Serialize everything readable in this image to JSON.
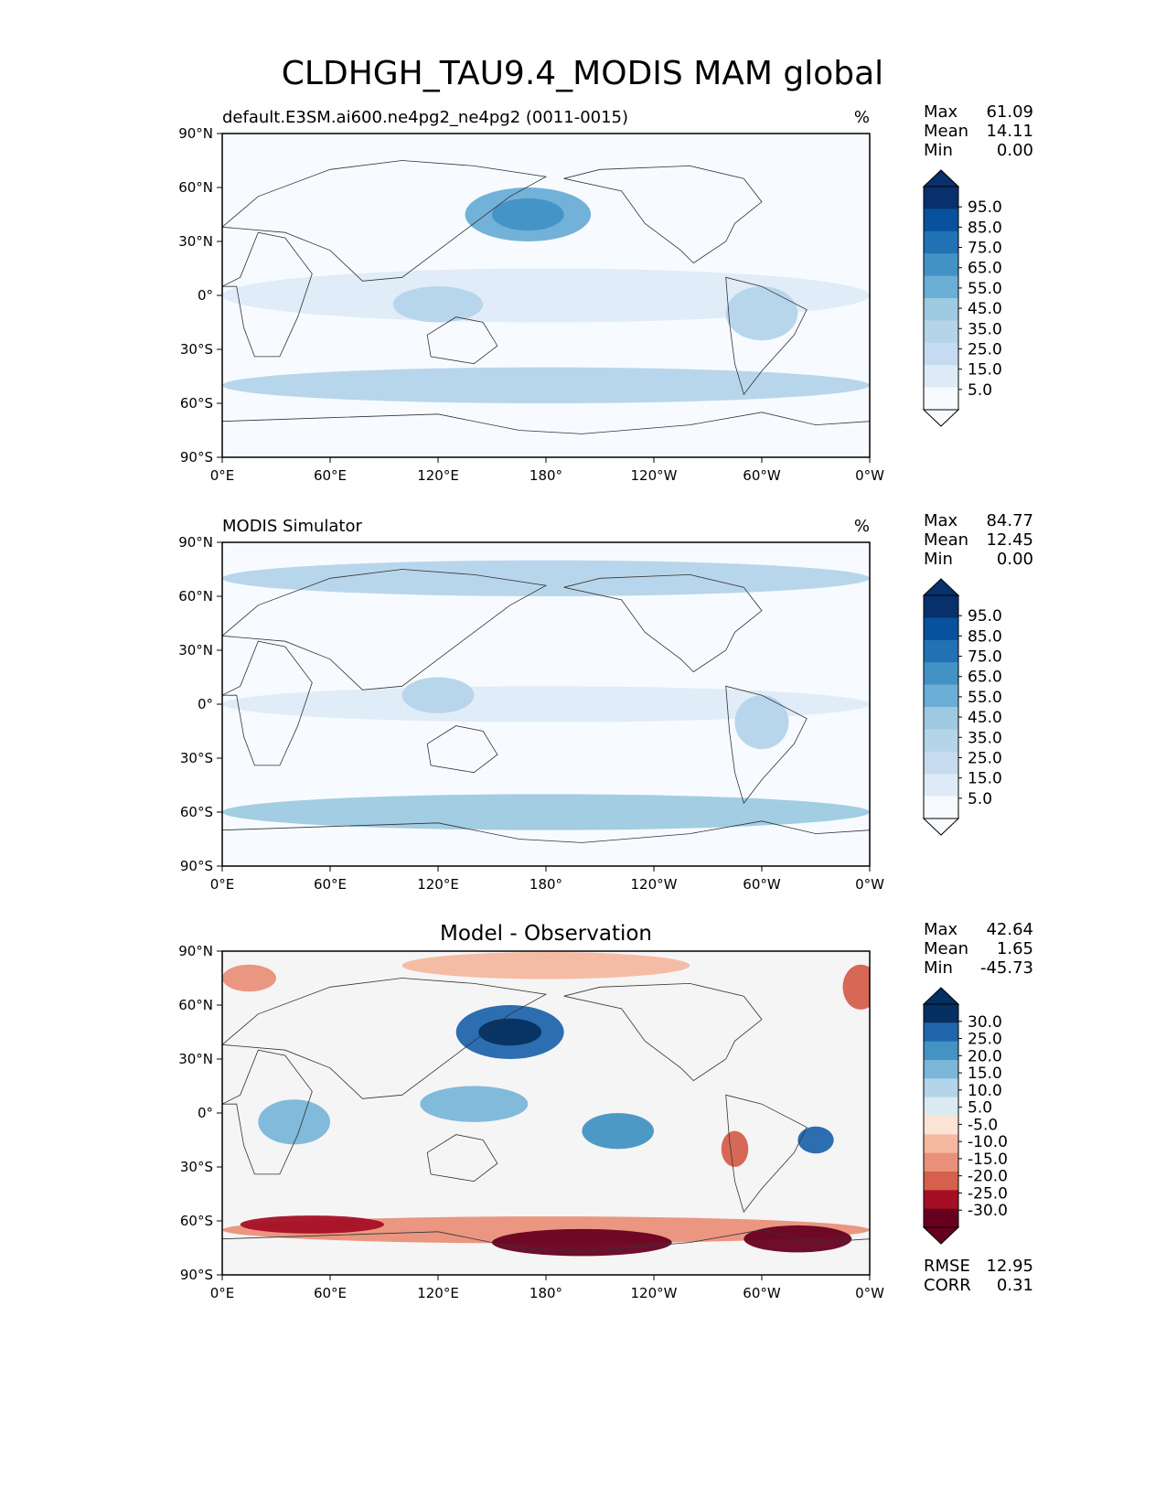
{
  "title": "CLDHGH_TAU9.4_MODIS MAM global",
  "x_ticks": [
    "0°E",
    "60°E",
    "120°E",
    "180°",
    "120°W",
    "60°W",
    "0°W"
  ],
  "y_ticks": [
    "90°N",
    "60°N",
    "30°N",
    "0°",
    "30°S",
    "60°S",
    "90°S"
  ],
  "stat_labels": {
    "max": "Max",
    "mean": "Mean",
    "min": "Min",
    "rmse": "RMSE",
    "corr": "CORR"
  },
  "colors": {
    "blues_scale": [
      "#f7fbff",
      "#deebf7",
      "#c6dbef",
      "#b4d4ea",
      "#9ecae1",
      "#6baed6",
      "#4292c6",
      "#2171b5",
      "#08519c",
      "#08306b"
    ],
    "diff_scale": [
      "#67001f",
      "#a50f25",
      "#d6604d",
      "#e9907a",
      "#f4b8a0",
      "#fbe3d6",
      "#f5f5f5",
      "#dbeaf2",
      "#b4d4ea",
      "#7bb6d9",
      "#4393c3",
      "#2166ac",
      "#053061"
    ]
  },
  "chart_data": [
    {
      "type": "heatmap",
      "panel": "test",
      "left_title": "default.E3SM.ai600.ne4pg2_ne4pg2 (0011-0015)",
      "units": "%",
      "xlim": [
        0,
        360
      ],
      "ylim": [
        -90,
        90
      ],
      "stats": {
        "max": "61.09",
        "mean": "14.11",
        "min": "0.00"
      },
      "contour_levels": [
        "95.0",
        "85.0",
        "75.0",
        "65.0",
        "55.0",
        "45.0",
        "35.0",
        "25.0",
        "15.0",
        "5.0"
      ],
      "regions": [
        {
          "lon": 170,
          "lat": 45,
          "w": 70,
          "h": 30,
          "level": 5
        },
        {
          "lon": 170,
          "lat": 45,
          "w": 40,
          "h": 18,
          "level": 6
        },
        {
          "lon": 180,
          "lat": 0,
          "w": 360,
          "h": 30,
          "level": 1
        },
        {
          "lon": 180,
          "lat": -50,
          "w": 360,
          "h": 20,
          "level": 3
        },
        {
          "lon": 300,
          "lat": -10,
          "w": 40,
          "h": 30,
          "level": 3
        },
        {
          "lon": 120,
          "lat": -5,
          "w": 50,
          "h": 20,
          "level": 3
        }
      ]
    },
    {
      "type": "heatmap",
      "panel": "reference",
      "left_title": "MODIS Simulator",
      "units": "%",
      "xlim": [
        0,
        360
      ],
      "ylim": [
        -90,
        90
      ],
      "stats": {
        "max": "84.77",
        "mean": "12.45",
        "min": "0.00"
      },
      "contour_levels": [
        "95.0",
        "85.0",
        "75.0",
        "65.0",
        "55.0",
        "45.0",
        "35.0",
        "25.0",
        "15.0",
        "5.0"
      ],
      "regions": [
        {
          "lon": 180,
          "lat": -60,
          "w": 360,
          "h": 20,
          "level": 4
        },
        {
          "lon": 180,
          "lat": 70,
          "w": 360,
          "h": 20,
          "level": 3
        },
        {
          "lon": 180,
          "lat": 0,
          "w": 360,
          "h": 20,
          "level": 1
        },
        {
          "lon": 120,
          "lat": 5,
          "w": 40,
          "h": 20,
          "level": 3
        },
        {
          "lon": 300,
          "lat": -10,
          "w": 30,
          "h": 30,
          "level": 3
        }
      ]
    },
    {
      "type": "heatmap",
      "panel": "difference",
      "center_title": "Model - Observation",
      "xlim": [
        0,
        360
      ],
      "ylim": [
        -90,
        90
      ],
      "stats": {
        "max": "42.64",
        "mean": "1.65",
        "min": "-45.73"
      },
      "rmse": "12.95",
      "corr": "0.31",
      "contour_levels": [
        "30.0",
        "25.0",
        "20.0",
        "15.0",
        "10.0",
        "5.0",
        "-5.0",
        "-10.0",
        "-15.0",
        "-20.0",
        "-25.0",
        "-30.0"
      ],
      "regions": [
        {
          "lon": 160,
          "lat": 45,
          "w": 60,
          "h": 30,
          "level": 11
        },
        {
          "lon": 160,
          "lat": 45,
          "w": 35,
          "h": 15,
          "level": 12
        },
        {
          "lon": 140,
          "lat": 5,
          "w": 60,
          "h": 20,
          "level": 9
        },
        {
          "lon": 220,
          "lat": -10,
          "w": 40,
          "h": 20,
          "level": 10
        },
        {
          "lon": 330,
          "lat": -15,
          "w": 20,
          "h": 15,
          "level": 11
        },
        {
          "lon": 40,
          "lat": -5,
          "w": 40,
          "h": 25,
          "level": 9
        },
        {
          "lon": 180,
          "lat": -65,
          "w": 360,
          "h": 15,
          "level": 3
        },
        {
          "lon": 50,
          "lat": -62,
          "w": 80,
          "h": 10,
          "level": 1
        },
        {
          "lon": 200,
          "lat": -72,
          "w": 100,
          "h": 15,
          "level": 0
        },
        {
          "lon": 320,
          "lat": -70,
          "w": 60,
          "h": 15,
          "level": 0
        },
        {
          "lon": 180,
          "lat": 82,
          "w": 160,
          "h": 15,
          "level": 4
        },
        {
          "lon": 355,
          "lat": 70,
          "w": 20,
          "h": 25,
          "level": 2
        },
        {
          "lon": 15,
          "lat": 75,
          "w": 30,
          "h": 15,
          "level": 3
        },
        {
          "lon": 285,
          "lat": -20,
          "w": 15,
          "h": 20,
          "level": 2
        }
      ]
    }
  ]
}
